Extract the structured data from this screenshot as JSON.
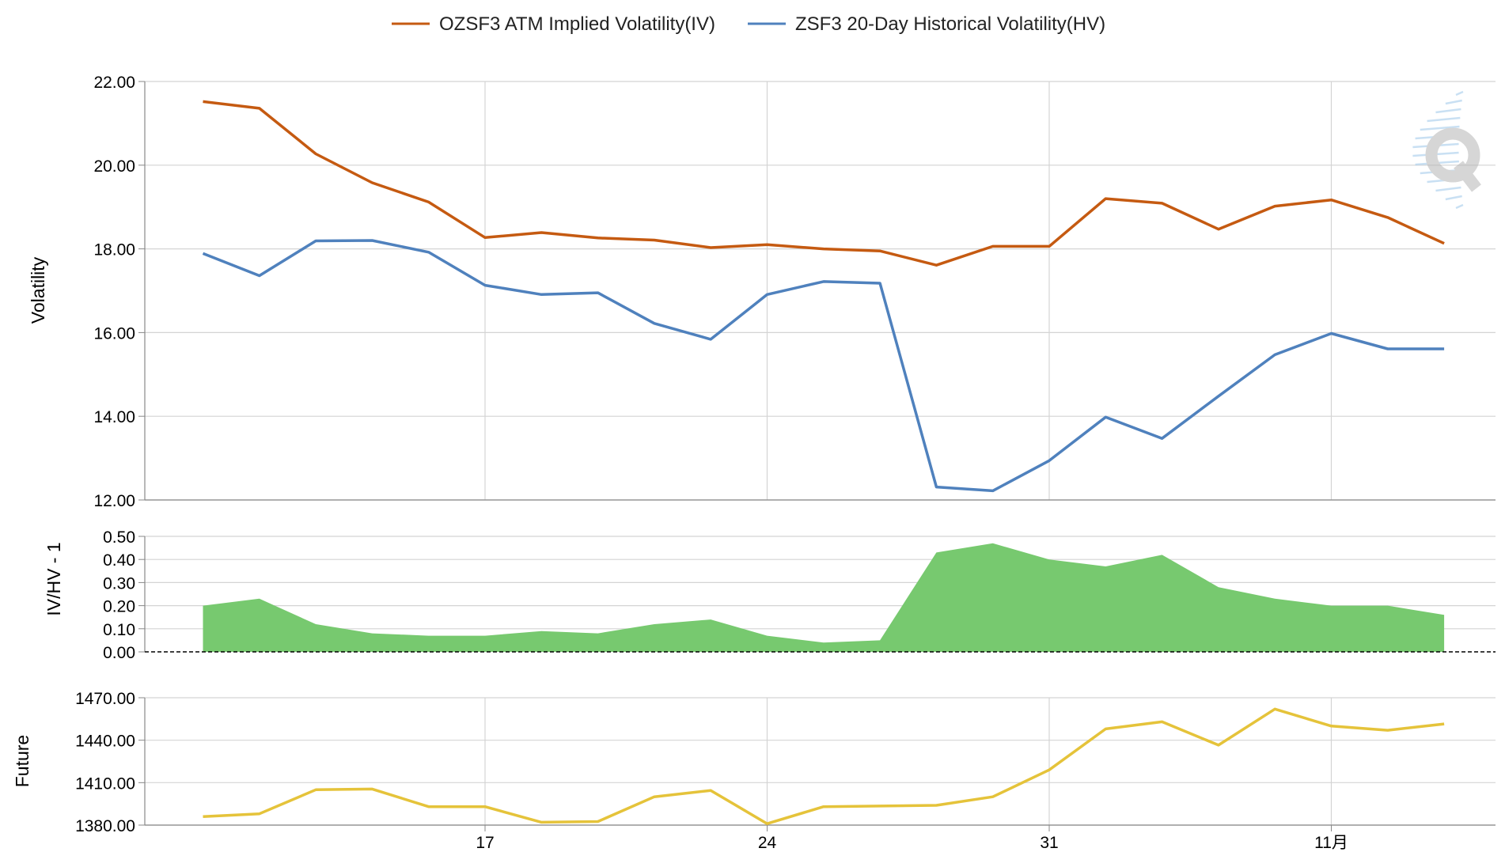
{
  "chart_data": [
    {
      "type": "line",
      "ylabel": "Volatility",
      "ylim": [
        12,
        22
      ],
      "yticks": [
        "12.00",
        "14.00",
        "16.00",
        "18.00",
        "20.00",
        "22.00"
      ],
      "grid": true,
      "legend": "top-center",
      "series": [
        {
          "name": "OZSF3 ATM Implied Volatility(IV)",
          "color": "#c55a11",
          "values": [
            21.52,
            21.36,
            20.27,
            19.58,
            19.12,
            18.27,
            18.39,
            18.26,
            18.21,
            18.03,
            18.1,
            18.0,
            17.95,
            17.61,
            18.06,
            18.06,
            19.2,
            19.09,
            18.47,
            19.02,
            19.17,
            18.75,
            18.13
          ]
        },
        {
          "name": "ZSF3 20-Day Historical Volatility(HV)",
          "color": "#4f81bd",
          "values": [
            17.89,
            17.36,
            18.19,
            18.2,
            17.92,
            17.13,
            16.91,
            16.95,
            16.22,
            15.84,
            16.91,
            17.22,
            17.18,
            12.31,
            12.22,
            12.94,
            13.98,
            13.47,
            14.48,
            15.47,
            15.98,
            15.61,
            15.61
          ]
        }
      ]
    },
    {
      "type": "area",
      "ylabel": "IV/HV - 1",
      "ylim": [
        0,
        0.5
      ],
      "yticks": [
        "0.00",
        "0.10",
        "0.20",
        "0.30",
        "0.40",
        "0.50"
      ],
      "grid": true,
      "series": [
        {
          "color": "#77c96f",
          "values": [
            0.2,
            0.23,
            0.12,
            0.08,
            0.07,
            0.07,
            0.09,
            0.08,
            0.12,
            0.14,
            0.07,
            0.04,
            0.05,
            0.43,
            0.47,
            0.4,
            0.37,
            0.42,
            0.28,
            0.23,
            0.2,
            0.2,
            0.16
          ]
        }
      ]
    },
    {
      "type": "line",
      "ylabel": "Future",
      "ylim": [
        1380,
        1470
      ],
      "yticks": [
        "1380.00",
        "1410.00",
        "1440.00",
        "1470.00"
      ],
      "grid": true,
      "xticks": [
        {
          "label": "17",
          "index": 5
        },
        {
          "label": "24",
          "index": 10
        },
        {
          "label": "31",
          "index": 15
        },
        {
          "label": "11月",
          "index": 20
        }
      ],
      "series": [
        {
          "color": "#e5c33a",
          "values": [
            1386,
            1388,
            1405,
            1405.5,
            1393,
            1393,
            1382,
            1382.5,
            1400,
            1404.5,
            1381,
            1393,
            1393.5,
            1394,
            1400,
            1419,
            1448,
            1453,
            1436.5,
            1462,
            1450,
            1447,
            1451.5
          ]
        }
      ]
    }
  ]
}
